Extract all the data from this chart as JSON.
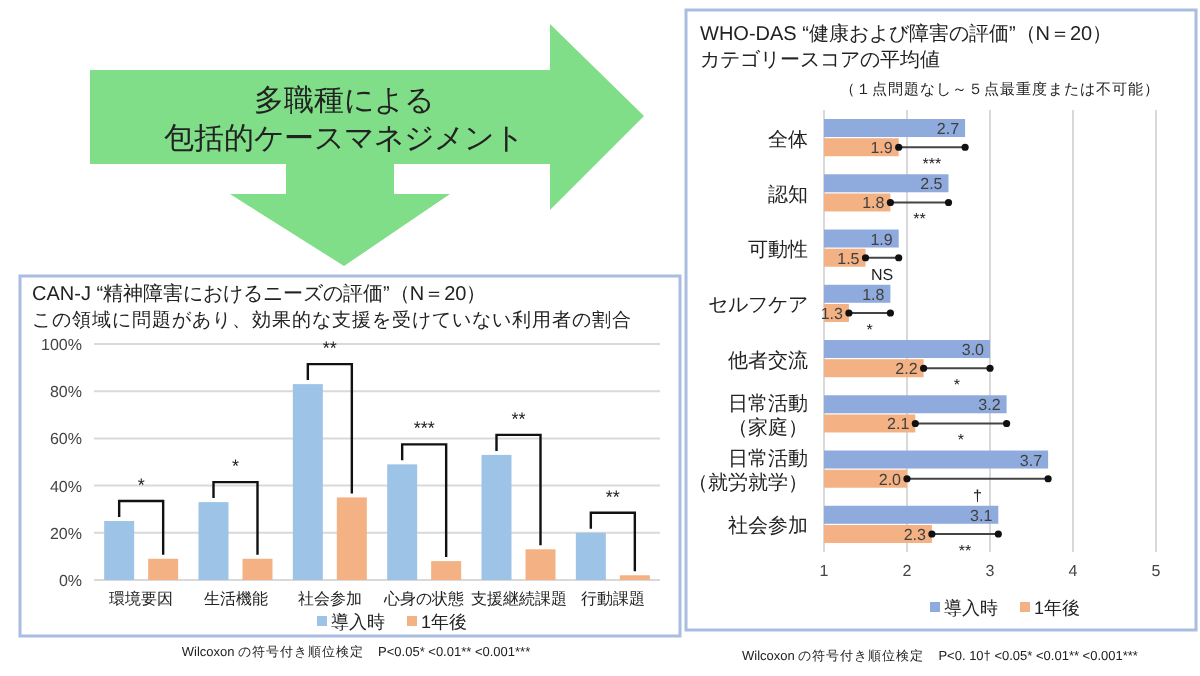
{
  "chart_data": [
    {
      "type": "other",
      "annotations": [
        "多職種による",
        "包括的ケースマネジメント"
      ]
    },
    {
      "type": "bar",
      "title": "CAN-J “精神障害におけるニーズの評価”（N＝20）",
      "subtitle": "この領域に問題があり、効果的な支援を受けていない利用者の割合",
      "categories": [
        "環境要因",
        "生活機能",
        "社会参加",
        "心身の状態",
        "支援継続課題",
        "行動課題"
      ],
      "series": [
        {
          "name": "導入時",
          "color": "#9dc3e6",
          "values": [
            25,
            33,
            83,
            49,
            53,
            20
          ]
        },
        {
          "name": "1年後",
          "color": "#f4b183",
          "values": [
            9,
            9,
            35,
            8,
            13,
            2
          ]
        }
      ],
      "ylim": [
        0,
        100
      ],
      "yticks": [
        {
          "value": 0,
          "label": "0%"
        },
        {
          "value": 20,
          "label": "20%"
        },
        {
          "value": 40,
          "label": "40%"
        },
        {
          "value": 60,
          "label": "60%"
        },
        {
          "value": 80,
          "label": "80%"
        },
        {
          "value": 100,
          "label": "100%"
        }
      ],
      "grid": "y",
      "legend": "bottom",
      "annotations": [
        "*",
        "*",
        "**",
        "***",
        "**",
        "**",
        "Wilcoxon の符号付き順位検定　P<0.05* <0.01** <0.001***"
      ]
    },
    {
      "type": "bar",
      "orientation": "horizontal",
      "title": "WHO-DAS “健康および障害の評価”（N＝20）",
      "subtitle": "カテゴリースコアの平均値",
      "categories": [
        "全体",
        "認知",
        "可動性",
        "セルフケア",
        "他者交流",
        "日常活動（家庭）",
        "日常活動（就労就学）",
        "社会参加"
      ],
      "series": [
        {
          "name": "導入時",
          "color": "#8faadc",
          "values": [
            2.7,
            2.5,
            1.9,
            1.8,
            3.0,
            3.2,
            3.7,
            3.1
          ],
          "value_labels": [
            "2.7",
            "2.5",
            "1.9",
            "1.8",
            "3.0",
            "3.2",
            "3.7",
            "3.1"
          ]
        },
        {
          "name": "1年後",
          "color": "#f4b183",
          "values": [
            1.9,
            1.8,
            1.5,
            1.3,
            2.2,
            2.1,
            2.0,
            2.3
          ],
          "value_labels": [
            "1.9",
            "1.8",
            "1.5",
            "1.3",
            "2.2",
            "2.1",
            "2.0",
            "2.3"
          ]
        }
      ],
      "xlim": [
        1,
        5
      ],
      "xticks": [
        1,
        2,
        3,
        4,
        5
      ],
      "grid": "x",
      "legend": "bottom",
      "annotations": [
        "***",
        "**",
        "NS",
        "*",
        "*",
        "*",
        "†",
        "**",
        "（１点問題なし～５点最重度または不可能）",
        "Wilcoxon の符号付き順位検定　P<0. 10† <0.05* <0.01** <0.001***"
      ]
    }
  ]
}
